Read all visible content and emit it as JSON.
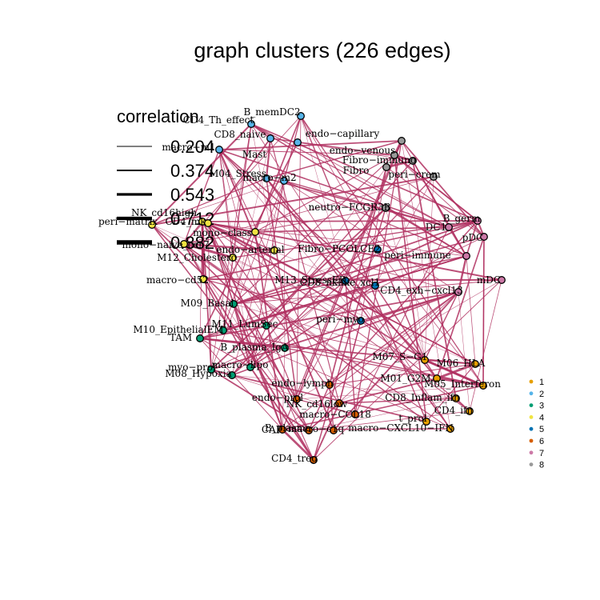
{
  "title": "graph clusters (226 edges)",
  "colors": {
    "edge": "#b03060",
    "clusters": {
      "1": "#E69F00",
      "2": "#56B4E9",
      "3": "#009E73",
      "4": "#F0E442",
      "5": "#0072B2",
      "6": "#D55E00",
      "7": "#CC79A7",
      "8": "#999999"
    }
  },
  "edge_legend": {
    "title": "correlation",
    "values": [
      "0.204",
      "0.374",
      "0.543",
      "0.712",
      "0.882"
    ]
  },
  "cluster_legend": [
    "1",
    "2",
    "3",
    "4",
    "5",
    "6",
    "7",
    "8"
  ],
  "nodes": [
    {
      "id": "B_memDC2",
      "cluster": "2"
    },
    {
      "id": "CD4_Th_effect",
      "cluster": "2"
    },
    {
      "id": "macro_m1",
      "cluster": "2"
    },
    {
      "id": "CD8_naive",
      "cluster": "2"
    },
    {
      "id": "M04_Stress",
      "cluster": "2"
    },
    {
      "id": "macro_m2",
      "cluster": "2"
    },
    {
      "id": "Mast",
      "cluster": "2"
    },
    {
      "id": "endo-capillary",
      "cluster": "8"
    },
    {
      "id": "endo-venous",
      "cluster": "8"
    },
    {
      "id": "Fibro-immuno",
      "cluster": "8"
    },
    {
      "id": "Fibro",
      "cluster": "8"
    },
    {
      "id": "peri-crem",
      "cluster": "8"
    },
    {
      "id": "neutro-FCGR3B",
      "cluster": "8"
    },
    {
      "id": "B_germ",
      "cluster": "7"
    },
    {
      "id": "DC1",
      "cluster": "7"
    },
    {
      "id": "pDC",
      "cluster": "7"
    },
    {
      "id": "peri-immune",
      "cluster": "7"
    },
    {
      "id": "mDC",
      "cluster": "7"
    },
    {
      "id": "CD4_exh-cxcl13",
      "cluster": "7"
    },
    {
      "id": "NK_cd16high",
      "cluster": "4"
    },
    {
      "id": "peri-matrix",
      "cluster": "4"
    },
    {
      "id": "CD4_mk",
      "cluster": "4"
    },
    {
      "id": "mono-class",
      "cluster": "4"
    },
    {
      "id": "mono-naive_ccr7",
      "cluster": "4"
    },
    {
      "id": "endo-arterial",
      "cluster": "4"
    },
    {
      "id": "M12_Cholestero",
      "cluster": "4"
    },
    {
      "id": "macro-cd52",
      "cluster": "4"
    },
    {
      "id": "Fibro-PCOLCE2",
      "cluster": "5"
    },
    {
      "id": "M13_StressER",
      "cluster": "5"
    },
    {
      "id": "CD8_nklike_xcl1",
      "cluster": "5"
    },
    {
      "id": "peri-myo",
      "cluster": "5"
    },
    {
      "id": "M09_Basal",
      "cluster": "3"
    },
    {
      "id": "M11_LumSec",
      "cluster": "3"
    },
    {
      "id": "M10_EpithelialEM",
      "cluster": "3"
    },
    {
      "id": "TAM",
      "cluster": "3"
    },
    {
      "id": "B_plasma_IgA",
      "cluster": "3"
    },
    {
      "id": "myo-prol",
      "cluster": "3"
    },
    {
      "id": "macro-lipo",
      "cluster": "3"
    },
    {
      "id": "M08_Hypoxia",
      "cluster": "3"
    },
    {
      "id": "M07_S-G1",
      "cluster": "1"
    },
    {
      "id": "M06_HLA",
      "cluster": "1"
    },
    {
      "id": "M01_G2M",
      "cluster": "1"
    },
    {
      "id": "M05_Interferon",
      "cluster": "1"
    },
    {
      "id": "CD8_Inflam_ifn",
      "cluster": "1"
    },
    {
      "id": "CD4_ifn",
      "cluster": "1"
    },
    {
      "id": "t_prol",
      "cluster": "1"
    },
    {
      "id": "macro-CXCL10-IFN",
      "cluster": "1"
    },
    {
      "id": "endo-lymph",
      "cluster": "6"
    },
    {
      "id": "endo-prol",
      "cluster": "6"
    },
    {
      "id": "NK_cd16low",
      "cluster": "6"
    },
    {
      "id": "macro-CCL18",
      "cluster": "6"
    },
    {
      "id": "CAF",
      "cluster": "6"
    },
    {
      "id": "B_plasma",
      "cluster": "6"
    },
    {
      "id": "macro-c1q",
      "cluster": "6"
    },
    {
      "id": "CD4_treg",
      "cluster": "6"
    }
  ]
}
